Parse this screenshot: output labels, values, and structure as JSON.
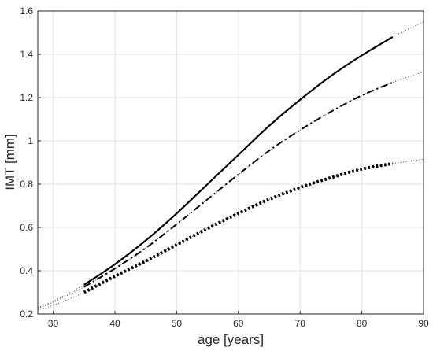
{
  "chart_data": {
    "type": "line",
    "xlabel": "age [years]",
    "ylabel": "IMT [mm]",
    "xlim": [
      27.5,
      90
    ],
    "ylim": [
      0.2,
      1.6
    ],
    "xticks": [
      30,
      40,
      50,
      60,
      70,
      80,
      90
    ],
    "yticks": [
      0.2,
      0.4,
      0.6,
      0.8,
      1,
      1.2,
      1.4,
      1.6
    ],
    "grid": true,
    "legend": "none",
    "series": [
      {
        "style": "solid",
        "x": [
          27.5,
          30,
          35,
          40,
          45,
          50,
          55,
          60,
          65,
          70,
          75,
          80,
          85,
          90
        ],
        "y": [
          0.23,
          0.26,
          0.335,
          0.43,
          0.54,
          0.665,
          0.8,
          0.935,
          1.07,
          1.19,
          1.3,
          1.395,
          1.48,
          1.55
        ],
        "observed_range": [
          35,
          85
        ]
      },
      {
        "style": "dashdot",
        "x": [
          27.5,
          30,
          35,
          40,
          45,
          50,
          55,
          60,
          65,
          70,
          75,
          80,
          85,
          90
        ],
        "y": [
          0.225,
          0.255,
          0.325,
          0.41,
          0.505,
          0.615,
          0.73,
          0.845,
          0.955,
          1.05,
          1.135,
          1.21,
          1.27,
          1.32
        ],
        "observed_range": [
          35,
          85
        ]
      },
      {
        "style": "dotted",
        "x": [
          27.5,
          30,
          35,
          40,
          45,
          50,
          55,
          60,
          65,
          70,
          75,
          80,
          85,
          90
        ],
        "y": [
          0.22,
          0.24,
          0.3,
          0.375,
          0.445,
          0.52,
          0.595,
          0.665,
          0.73,
          0.785,
          0.83,
          0.87,
          0.895,
          0.915
        ],
        "observed_range": [
          35,
          85
        ]
      }
    ]
  }
}
